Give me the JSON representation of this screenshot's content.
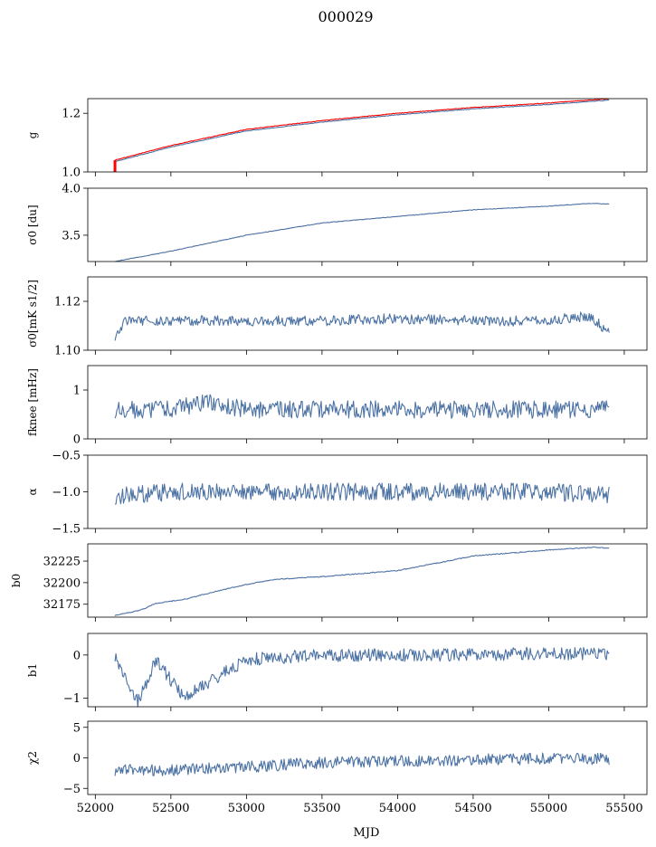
{
  "title": "000029",
  "colors": {
    "series": "#4c72a4",
    "overlay": "#ff0000"
  },
  "chart_data": [
    {
      "type": "line",
      "ylabel": "g",
      "ylim": [
        1.0,
        1.25
      ],
      "yticks": [
        "1.0",
        "1.2"
      ],
      "ytick_values": [
        1.0,
        1.2
      ],
      "x": [
        52130,
        52500,
        53000,
        53500,
        54000,
        54500,
        55000,
        55400
      ],
      "series": [
        {
          "color": "#4c72a4",
          "values": [
            1.035,
            1.085,
            1.14,
            1.17,
            1.195,
            1.215,
            1.23,
            1.245
          ]
        },
        {
          "color": "#ff0000",
          "values": [
            1.04,
            1.09,
            1.145,
            1.175,
            1.2,
            1.22,
            1.235,
            1.25
          ]
        }
      ]
    },
    {
      "type": "line",
      "ylabel": "σ0 [du]",
      "ylim": [
        3.22,
        4.0
      ],
      "yticks": [
        "3.5",
        "4.0"
      ],
      "ytick_values": [
        3.5,
        4.0
      ],
      "x": [
        52130,
        52500,
        53000,
        53500,
        54000,
        54500,
        55000,
        55300,
        55400
      ],
      "series": [
        {
          "values": [
            3.22,
            3.33,
            3.5,
            3.63,
            3.7,
            3.77,
            3.81,
            3.84,
            3.83
          ]
        }
      ]
    },
    {
      "type": "line",
      "ylabel": "σ0[mK s1/2]",
      "ylim": [
        1.1,
        1.13
      ],
      "yticks": [
        "1.10",
        "1.12"
      ],
      "ytick_values": [
        1.1,
        1.12
      ],
      "x": [
        52130,
        52200,
        52400,
        53000,
        53500,
        54000,
        54500,
        55000,
        55250,
        55400
      ],
      "series": [
        {
          "values": [
            1.106,
            1.112,
            1.112,
            1.112,
            1.112,
            1.113,
            1.112,
            1.112,
            1.114,
            1.108
          ]
        }
      ]
    },
    {
      "type": "line",
      "ylabel": "fknee [mHz]",
      "ylim": [
        0,
        1.5
      ],
      "yticks": [
        "0",
        "1"
      ],
      "ytick_values": [
        0,
        1
      ],
      "x": [
        52130,
        52500,
        52750,
        53000,
        53500,
        54000,
        54500,
        55000,
        55400
      ],
      "series": [
        {
          "values": [
            0.6,
            0.6,
            0.75,
            0.6,
            0.6,
            0.6,
            0.6,
            0.6,
            0.6
          ]
        }
      ]
    },
    {
      "type": "line",
      "ylabel": "α",
      "ylim": [
        -1.5,
        -0.5
      ],
      "yticks": [
        "−1.5",
        "−1.0",
        "−0.5"
      ],
      "ytick_values": [
        -1.5,
        -1.0,
        -0.5
      ],
      "x": [
        52130,
        52500,
        53000,
        53500,
        54000,
        54500,
        55000,
        55400
      ],
      "series": [
        {
          "values": [
            -1.05,
            -1.0,
            -1.0,
            -1.0,
            -1.0,
            -1.0,
            -1.0,
            -1.05
          ]
        }
      ]
    },
    {
      "type": "line",
      "ylabel": "b0",
      "ylim": [
        32160,
        32245
      ],
      "yticks": [
        "32175",
        "32200",
        "32225"
      ],
      "ytick_values": [
        32175,
        32200,
        32225
      ],
      "x": [
        52130,
        52300,
        52400,
        52600,
        52800,
        53000,
        53200,
        53500,
        54000,
        54300,
        54500,
        54800,
        55000,
        55300,
        55400
      ],
      "series": [
        {
          "values": [
            32162,
            32168,
            32176,
            32181,
            32190,
            32198,
            32204,
            32207,
            32214,
            32224,
            32231,
            32235,
            32238,
            32241,
            32240
          ]
        }
      ]
    },
    {
      "type": "line",
      "ylabel": "b1",
      "ylim": [
        -1.2,
        0.5
      ],
      "yticks": [
        "−1",
        "0"
      ],
      "ytick_values": [
        -1,
        0
      ],
      "x": [
        52130,
        52280,
        52400,
        52590,
        53000,
        53500,
        54000,
        54500,
        55000,
        55400
      ],
      "series": [
        {
          "values": [
            0.0,
            -1.1,
            -0.1,
            -1.0,
            -0.1,
            0.0,
            0.0,
            0.0,
            0.05,
            0.0
          ]
        }
      ]
    },
    {
      "type": "line",
      "ylabel": "χ2",
      "xlabel": "MJD",
      "xlim": [
        51950,
        55650
      ],
      "xticks": [
        "52000",
        "52500",
        "53000",
        "53500",
        "54000",
        "54500",
        "55000",
        "55500"
      ],
      "xtick_values": [
        52000,
        52500,
        53000,
        53500,
        54000,
        54500,
        55000,
        55500
      ],
      "ylim": [
        -6,
        6
      ],
      "yticks": [
        "−5",
        "0",
        "5"
      ],
      "ytick_values": [
        -5,
        0,
        5
      ],
      "x": [
        52130,
        52500,
        53000,
        53500,
        54000,
        54500,
        55000,
        55400
      ],
      "series": [
        {
          "values": [
            -2.0,
            -2.0,
            -1.5,
            -0.8,
            -0.5,
            -0.3,
            -0.1,
            -0.2
          ]
        }
      ]
    }
  ]
}
